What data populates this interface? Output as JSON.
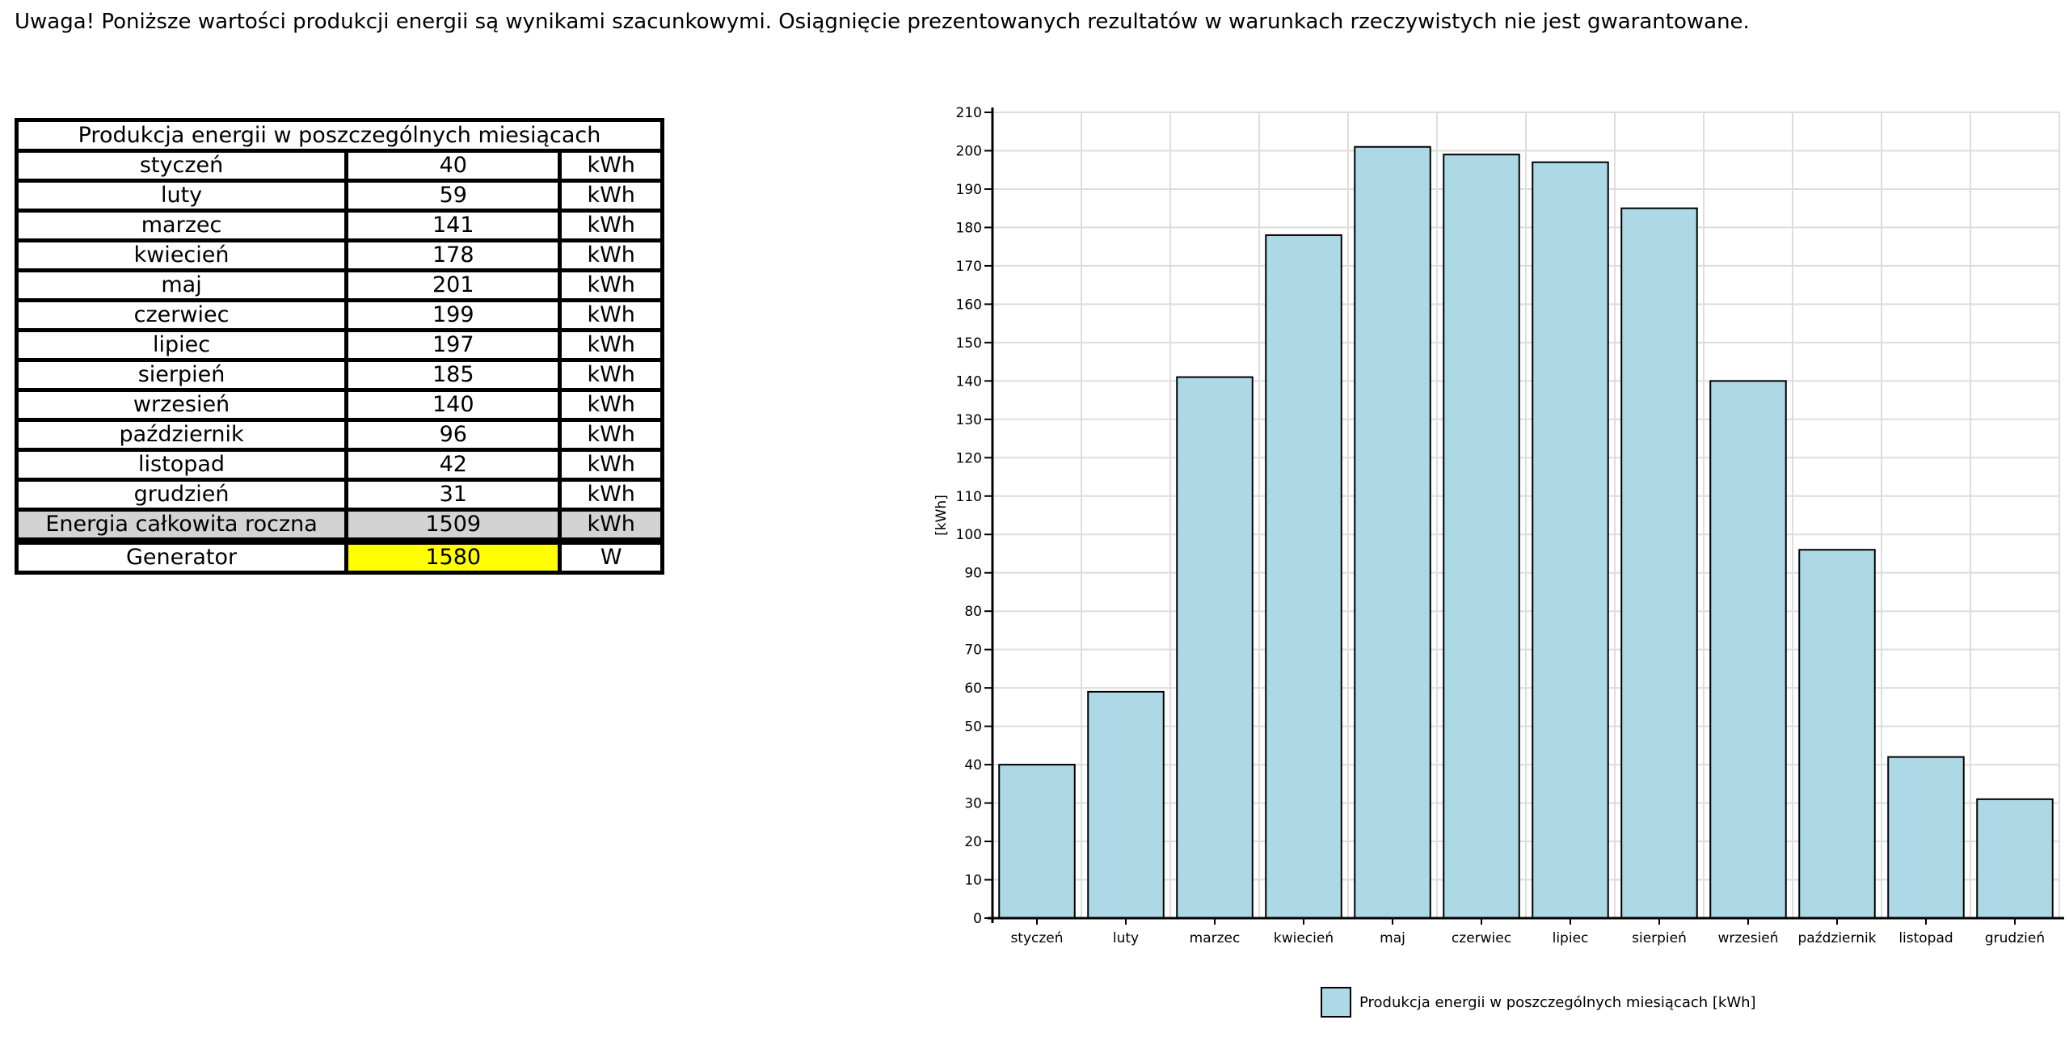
{
  "warning": "Uwaga! Poniższe wartości produkcji energii są wynikami szacunkowymi. Osiągnięcie prezentowanych rezultatów w warunkach rzeczywistych nie jest gwarantowane.",
  "table": {
    "title": "Produkcja energii w poszczególnych miesiącach",
    "rows": [
      {
        "month": "styczeń",
        "value": "40",
        "unit": "kWh"
      },
      {
        "month": "luty",
        "value": "59",
        "unit": "kWh"
      },
      {
        "month": "marzec",
        "value": "141",
        "unit": "kWh"
      },
      {
        "month": "kwiecień",
        "value": "178",
        "unit": "kWh"
      },
      {
        "month": "maj",
        "value": "201",
        "unit": "kWh"
      },
      {
        "month": "czerwiec",
        "value": "199",
        "unit": "kWh"
      },
      {
        "month": "lipiec",
        "value": "197",
        "unit": "kWh"
      },
      {
        "month": "sierpień",
        "value": "185",
        "unit": "kWh"
      },
      {
        "month": "wrzesień",
        "value": "140",
        "unit": "kWh"
      },
      {
        "month": "październik",
        "value": "96",
        "unit": "kWh"
      },
      {
        "month": "listopad",
        "value": "42",
        "unit": "kWh"
      },
      {
        "month": "grudzień",
        "value": "31",
        "unit": "kWh"
      }
    ],
    "total": {
      "label": "Energia całkowita roczna",
      "value": "1509",
      "unit": "kWh"
    },
    "generator": {
      "label": "Generator",
      "value": "1580",
      "unit": "W"
    }
  },
  "chart_data": {
    "type": "bar",
    "categories": [
      "styczeń",
      "luty",
      "marzec",
      "kwiecień",
      "maj",
      "czerwiec",
      "lipiec",
      "sierpień",
      "wrzesień",
      "październik",
      "listopad",
      "grudzień"
    ],
    "series": [
      {
        "name": "Produkcja energii w poszczególnych miesiącach [kWh]",
        "values": [
          40,
          59,
          141,
          178,
          201,
          199,
          197,
          185,
          140,
          96,
          42,
          31
        ],
        "color": "#add8e6"
      }
    ],
    "title": "",
    "xlabel": "",
    "ylabel": "[kWh]",
    "ylim": [
      0,
      210
    ],
    "yticks": [
      0,
      10,
      20,
      30,
      40,
      50,
      60,
      70,
      80,
      90,
      100,
      110,
      120,
      130,
      140,
      150,
      160,
      170,
      180,
      190,
      200,
      210
    ],
    "grid": true,
    "legend": "bottom-center"
  }
}
